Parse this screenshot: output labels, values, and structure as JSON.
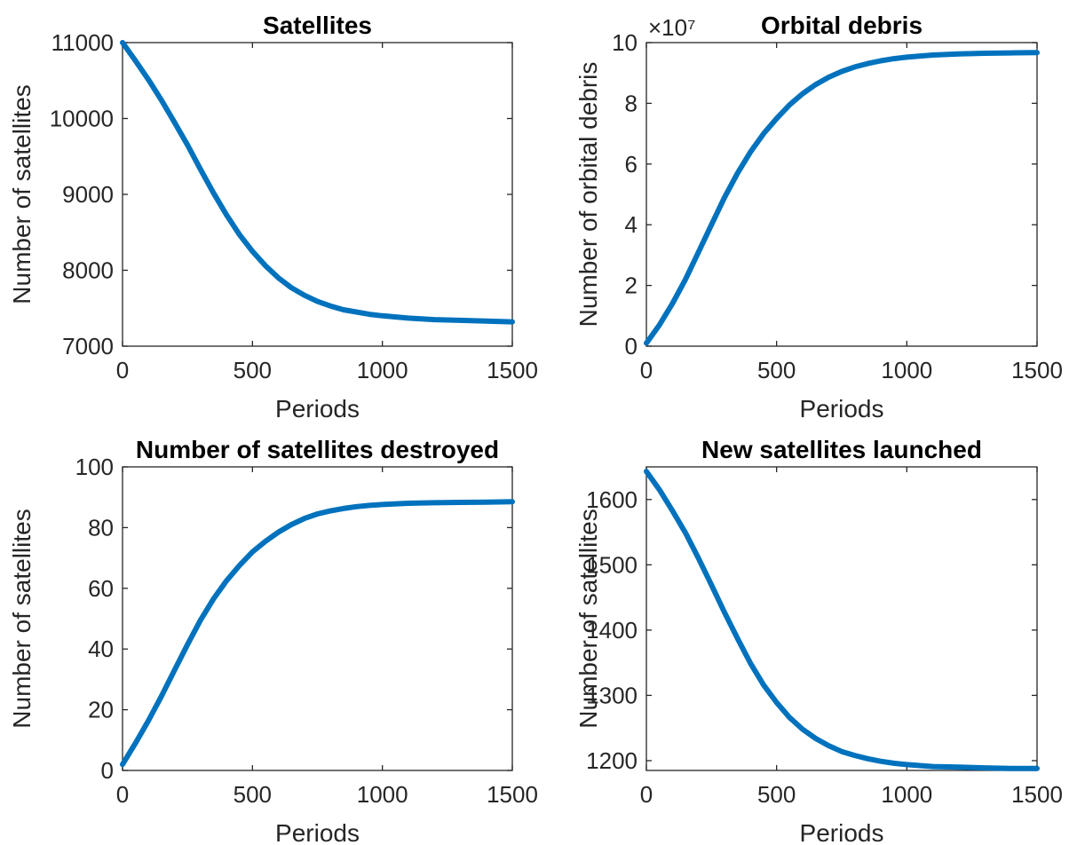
{
  "colors": {
    "series": "#0072BD",
    "axis": "#262626",
    "title": "#000000"
  },
  "chart_data": [
    {
      "type": "line",
      "title": "Satellites",
      "xlabel": "Periods",
      "ylabel": "Number of satellites",
      "xlim": [
        0,
        1500
      ],
      "ylim": [
        7000,
        11000
      ],
      "xticks": [
        0,
        500,
        1000,
        1500
      ],
      "yticks": [
        7000,
        8000,
        9000,
        10000,
        11000
      ],
      "xtick_labels": [
        "0",
        "500",
        "1000",
        "1500"
      ],
      "ytick_labels": [
        "7000",
        "8000",
        "9000",
        "10000",
        "11000"
      ],
      "exponent_label": "",
      "grid": false,
      "series": [
        {
          "x": [
            0,
            50,
            100,
            150,
            200,
            250,
            300,
            350,
            400,
            450,
            500,
            550,
            600,
            650,
            700,
            750,
            800,
            850,
            900,
            950,
            1000,
            1100,
            1200,
            1300,
            1400,
            1500
          ],
          "y": [
            11000,
            10760,
            10510,
            10240,
            9950,
            9650,
            9330,
            9020,
            8730,
            8470,
            8250,
            8060,
            7900,
            7770,
            7670,
            7590,
            7530,
            7480,
            7450,
            7420,
            7400,
            7370,
            7350,
            7340,
            7330,
            7320
          ]
        }
      ]
    },
    {
      "type": "line",
      "title": "Orbital debris",
      "xlabel": "Periods",
      "ylabel": "Number of orbital debris",
      "xlim": [
        0,
        1500
      ],
      "ylim": [
        0,
        100000000
      ],
      "xticks": [
        0,
        500,
        1000,
        1500
      ],
      "yticks": [
        0,
        20000000,
        40000000,
        60000000,
        80000000,
        100000000
      ],
      "xtick_labels": [
        "0",
        "500",
        "1000",
        "1500"
      ],
      "ytick_labels": [
        "0",
        "2",
        "4",
        "6",
        "8",
        "10"
      ],
      "exponent_label": "×10⁷",
      "grid": false,
      "series": [
        {
          "x": [
            0,
            50,
            100,
            150,
            200,
            250,
            300,
            350,
            400,
            450,
            500,
            550,
            600,
            650,
            700,
            750,
            800,
            850,
            900,
            950,
            1000,
            1100,
            1200,
            1300,
            1400,
            1500
          ],
          "y": [
            1000000,
            7000000,
            14000000,
            22000000,
            31000000,
            40000000,
            49000000,
            57000000,
            64000000,
            70000000,
            75000000,
            79500000,
            83200000,
            86200000,
            88600000,
            90500000,
            92000000,
            93100000,
            94000000,
            94700000,
            95200000,
            95900000,
            96300000,
            96500000,
            96600000,
            96700000
          ]
        }
      ]
    },
    {
      "type": "line",
      "title": "Number of satellites destroyed",
      "xlabel": "Periods",
      "ylabel": "Number of satellites",
      "xlim": [
        0,
        1500
      ],
      "ylim": [
        0,
        100
      ],
      "xticks": [
        0,
        500,
        1000,
        1500
      ],
      "yticks": [
        0,
        20,
        40,
        60,
        80,
        100
      ],
      "xtick_labels": [
        "0",
        "500",
        "1000",
        "1500"
      ],
      "ytick_labels": [
        "0",
        "20",
        "40",
        "60",
        "80",
        "100"
      ],
      "exponent_label": "",
      "grid": false,
      "series": [
        {
          "x": [
            0,
            50,
            100,
            150,
            200,
            250,
            300,
            350,
            400,
            450,
            500,
            550,
            600,
            650,
            700,
            750,
            800,
            850,
            900,
            950,
            1000,
            1100,
            1200,
            1300,
            1400,
            1500
          ],
          "y": [
            2,
            9,
            16.5,
            24.5,
            33,
            41.5,
            49.5,
            56.5,
            62.5,
            67.5,
            72,
            75.5,
            78.5,
            81,
            83,
            84.5,
            85.5,
            86.3,
            86.9,
            87.3,
            87.6,
            88,
            88.2,
            88.3,
            88.4,
            88.5
          ]
        }
      ]
    },
    {
      "type": "line",
      "title": "New satellites launched",
      "xlabel": "Periods",
      "ylabel": "Number of satellites",
      "xlim": [
        0,
        1500
      ],
      "ylim": [
        1185,
        1650
      ],
      "xticks": [
        0,
        500,
        1000,
        1500
      ],
      "yticks": [
        1200,
        1300,
        1400,
        1500,
        1600
      ],
      "xtick_labels": [
        "0",
        "500",
        "1000",
        "1500"
      ],
      "ytick_labels": [
        "1200",
        "1300",
        "1400",
        "1500",
        "1600"
      ],
      "exponent_label": "",
      "grid": false,
      "series": [
        {
          "x": [
            0,
            50,
            100,
            150,
            200,
            250,
            300,
            350,
            400,
            450,
            500,
            550,
            600,
            650,
            700,
            750,
            800,
            850,
            900,
            950,
            1000,
            1100,
            1200,
            1300,
            1400,
            1500
          ],
          "y": [
            1643,
            1615,
            1583,
            1549,
            1510,
            1469,
            1427,
            1387,
            1349,
            1316,
            1289,
            1266,
            1248,
            1234,
            1223,
            1214,
            1208,
            1203,
            1199,
            1196,
            1194,
            1191,
            1190,
            1189,
            1188,
            1188
          ]
        }
      ]
    }
  ]
}
